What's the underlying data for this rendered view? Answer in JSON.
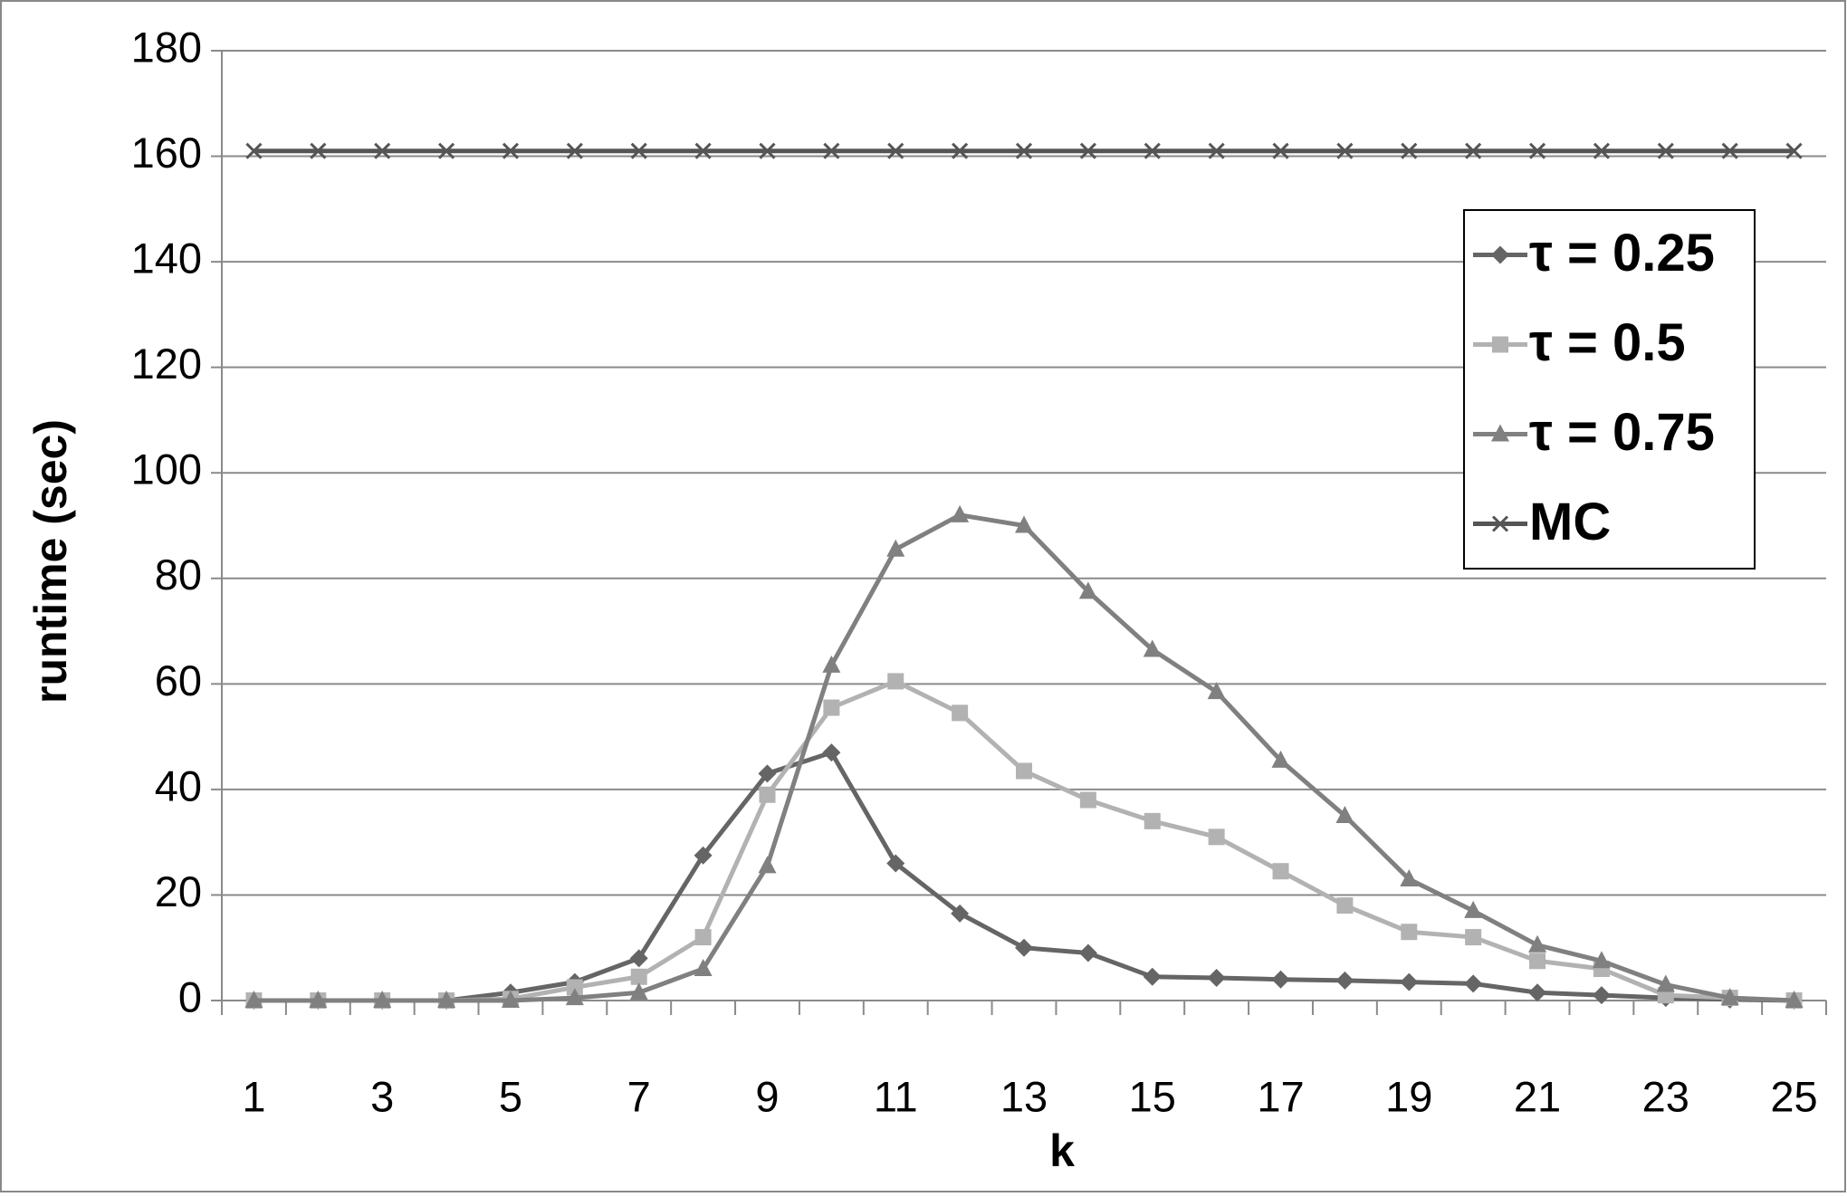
{
  "chart_data": {
    "type": "line",
    "x_label": "k",
    "y_label": "runtime (sec)",
    "categories": [
      1,
      null,
      3,
      null,
      5,
      null,
      7,
      null,
      9,
      null,
      11,
      null,
      13,
      null,
      15,
      null,
      17,
      null,
      19,
      null,
      21,
      null,
      23,
      null,
      25
    ],
    "ylim": [
      0,
      180
    ],
    "yticks": [
      0,
      20,
      40,
      60,
      80,
      100,
      120,
      140,
      160,
      180
    ],
    "grid": true,
    "legend": "upper right",
    "series": [
      {
        "name": "τ = 0.25",
        "color": "#656565",
        "marker": "diamond",
        "values": [
          0,
          0,
          0,
          0,
          1.5,
          3.5,
          8,
          27.5,
          43,
          47,
          26,
          16.5,
          10,
          9,
          4.5,
          4.3,
          4,
          3.8,
          3.5,
          3.2,
          1.5,
          1,
          0.5,
          0.2,
          0
        ]
      },
      {
        "name": "τ = 0.5",
        "color": "#b2b2b2",
        "marker": "square",
        "values": [
          0,
          0,
          0,
          0,
          0.3,
          2.5,
          4.5,
          12,
          39,
          55.5,
          60.5,
          54.5,
          43.5,
          38,
          34,
          31,
          24.5,
          18,
          13,
          12,
          7.5,
          6,
          1,
          0.5,
          0
        ]
      },
      {
        "name": "τ = 0.75",
        "color": "#808080",
        "marker": "triangle",
        "values": [
          0,
          0,
          0,
          0,
          0,
          0.5,
          1.5,
          6,
          25.5,
          63.5,
          85.5,
          92,
          90,
          77.5,
          66.5,
          58.5,
          45.5,
          35,
          23,
          17,
          10.5,
          7.5,
          3,
          0.5,
          0
        ]
      },
      {
        "name": "MC",
        "color": "#555555",
        "marker": "x",
        "values": [
          161,
          161,
          161,
          161,
          161,
          161,
          161,
          161,
          161,
          161,
          161,
          161,
          161,
          161,
          161,
          161,
          161,
          161,
          161,
          161,
          161,
          161,
          161,
          161,
          161
        ]
      }
    ]
  }
}
